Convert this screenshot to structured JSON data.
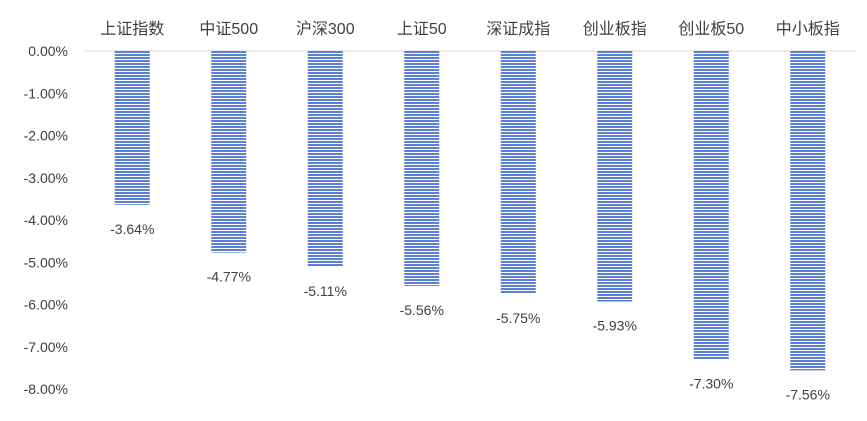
{
  "chart_data": {
    "type": "bar",
    "categories": [
      "上证指数",
      "中证500",
      "沪深300",
      "上证50",
      "深证成指",
      "创业板指",
      "创业板50",
      "中小板指"
    ],
    "values": [
      -3.64,
      -4.77,
      -5.11,
      -5.56,
      -5.75,
      -5.93,
      -7.3,
      -7.56
    ],
    "value_labels": [
      "-3.64%",
      "-4.77%",
      "-5.11%",
      "-5.56%",
      "-5.75%",
      "-5.93%",
      "-7.30%",
      "-7.56%"
    ],
    "ylim": [
      -8,
      0
    ],
    "y_ticks": [
      0,
      -1,
      -2,
      -3,
      -4,
      -5,
      -6,
      -7,
      -8
    ],
    "y_tick_labels": [
      "0.00%",
      "-1.00%",
      "-2.00%",
      "-3.00%",
      "-4.00%",
      "-5.00%",
      "-6.00%",
      "-7.00%",
      "-8.00%"
    ],
    "category_axis_position": "top",
    "grid": false,
    "legend": "none",
    "colors": {
      "bar_stripe": "#5b7fd4",
      "bar_gap": "#ffffff",
      "text": "#404040",
      "axis": "#d9d9d9"
    }
  }
}
